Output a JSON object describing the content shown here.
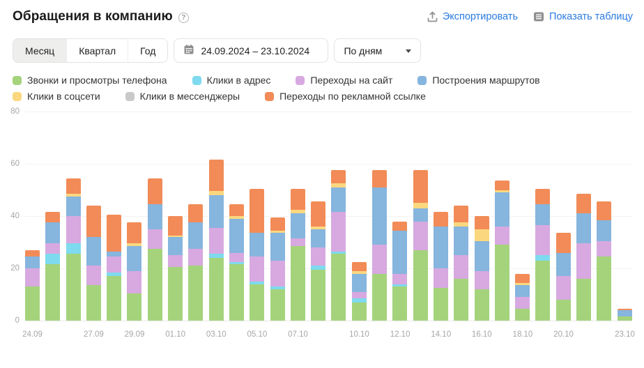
{
  "header": {
    "title": "Обращения в компанию",
    "export_label": "Экспортировать",
    "show_table_label": "Показать таблицу"
  },
  "controls": {
    "period_tabs": [
      {
        "label": "Месяц",
        "selected": true
      },
      {
        "label": "Квартал",
        "selected": false
      },
      {
        "label": "Год",
        "selected": false
      }
    ],
    "date_range": "24.09.2024 – 23.10.2024",
    "granularity_value": "По дням"
  },
  "colors": {
    "link_blue": "#2a7be0",
    "icon_gray": "#8f8f8f",
    "axis_gray": "#a6a6a6"
  },
  "legend_rows": [
    [
      {
        "label": "Звонки и просмотры телефона",
        "color": "#a5d37c"
      },
      {
        "label": "Клики в адрес",
        "color": "#7edaee"
      },
      {
        "label": "Переходы на сайт",
        "color": "#d7a9e0"
      },
      {
        "label": "Построения маршрутов",
        "color": "#86b5de"
      }
    ],
    [
      {
        "label": "Клики в соцсети",
        "color": "#fbd87f"
      },
      {
        "label": "Клики в мессенджеры",
        "color": "#c9c9c9"
      },
      {
        "label": "Переходы по рекламной ссылке",
        "color": "#f28b57"
      }
    ]
  ],
  "chart_data": {
    "type": "bar",
    "stacked": true,
    "title": "Обращения в компанию",
    "xlabel": "",
    "ylabel": "",
    "ylim": [
      0,
      80
    ],
    "yticks": [
      0,
      20,
      40,
      60,
      80
    ],
    "grid": true,
    "legend_position": "top",
    "x": [
      "24.09",
      "25.09",
      "26.09",
      "27.09",
      "28.09",
      "29.09",
      "30.09",
      "01.10",
      "02.10",
      "03.10",
      "04.10",
      "05.10",
      "06.10",
      "07.10",
      "08.10",
      "09.10",
      "10.10",
      "11.10",
      "12.10",
      "13.10",
      "14.10",
      "15.10",
      "16.10",
      "17.10",
      "18.10",
      "19.10",
      "20.10",
      "21.10",
      "22.10",
      "23.10"
    ],
    "xticks": [
      {
        "label": "24.09",
        "i": 0
      },
      {
        "label": "27.09",
        "i": 3
      },
      {
        "label": "29.09",
        "i": 5
      },
      {
        "label": "01.10",
        "i": 7
      },
      {
        "label": "03.10",
        "i": 9
      },
      {
        "label": "05.10",
        "i": 11
      },
      {
        "label": "07.10",
        "i": 13
      },
      {
        "label": "10.10",
        "i": 16
      },
      {
        "label": "12.10",
        "i": 18
      },
      {
        "label": "14.10",
        "i": 20
      },
      {
        "label": "16.10",
        "i": 22
      },
      {
        "label": "18.10",
        "i": 24
      },
      {
        "label": "20.10",
        "i": 26
      },
      {
        "label": "23.10",
        "i": 29
      }
    ],
    "series": [
      {
        "name": "Звонки и просмотры телефона",
        "color": "#a5d37c",
        "values": [
          13,
          21.5,
          25.5,
          13.5,
          17,
          10.5,
          27.5,
          20.5,
          21,
          24,
          21.5,
          14,
          12,
          28.5,
          19.5,
          25.5,
          7,
          18,
          13,
          27,
          12.5,
          16,
          12,
          29,
          4.5,
          23,
          8,
          16,
          24.5,
          1.5
        ]
      },
      {
        "name": "Клики в адрес",
        "color": "#7edaee",
        "values": [
          0,
          4,
          4,
          0,
          1.5,
          0,
          0,
          0,
          0,
          1.5,
          1,
          1,
          1,
          0,
          1.5,
          1,
          1.5,
          0,
          1,
          0,
          0,
          0,
          0,
          0,
          0,
          2,
          0,
          0,
          0,
          0
        ]
      },
      {
        "name": "Переходы на сайт",
        "color": "#d7a9e0",
        "values": [
          7,
          4,
          10.5,
          7.5,
          6,
          8.5,
          7.5,
          4.5,
          6.5,
          10,
          3.5,
          9.5,
          10,
          3,
          7,
          15,
          2.5,
          11,
          4,
          11,
          7.5,
          9,
          7,
          7,
          4.5,
          11.5,
          9,
          13.5,
          6,
          0
        ]
      },
      {
        "name": "Построения маршрутов",
        "color": "#86b5de",
        "values": [
          4.5,
          8,
          7.5,
          11,
          2,
          9.5,
          9.5,
          7,
          10,
          12.5,
          13,
          9,
          10.5,
          9.5,
          7,
          9.5,
          7,
          22,
          16.5,
          5,
          16,
          11,
          11.5,
          13,
          4.5,
          8,
          9,
          11.5,
          8,
          2.5
        ]
      },
      {
        "name": "Клики в соцсети",
        "color": "#fbd87f",
        "values": [
          0,
          0,
          1,
          0,
          0,
          1,
          0,
          0.5,
          0,
          1.5,
          1,
          0,
          1,
          1.5,
          1,
          1.5,
          1,
          0,
          0,
          2,
          0,
          1.5,
          4.5,
          1,
          1,
          0,
          0,
          0,
          0,
          0
        ]
      },
      {
        "name": "Клики в мессенджеры",
        "color": "#c9c9c9",
        "values": [
          0,
          0,
          0,
          0,
          0,
          0,
          0,
          0,
          0,
          0,
          0,
          0,
          0,
          0,
          0,
          0,
          0,
          0,
          0,
          0,
          0,
          0,
          0,
          0,
          0,
          0,
          0,
          0,
          0,
          0
        ]
      },
      {
        "name": "Переходы по рекламной ссылке",
        "color": "#f28b57",
        "values": [
          2.5,
          4,
          6,
          12,
          14,
          8,
          10,
          7.5,
          7,
          12,
          4.5,
          17,
          5,
          8,
          9.5,
          5,
          3.5,
          6.5,
          3.5,
          12.5,
          5.5,
          6.5,
          5,
          3.5,
          3.5,
          6,
          7.5,
          7.5,
          7,
          0.5
        ]
      }
    ]
  }
}
